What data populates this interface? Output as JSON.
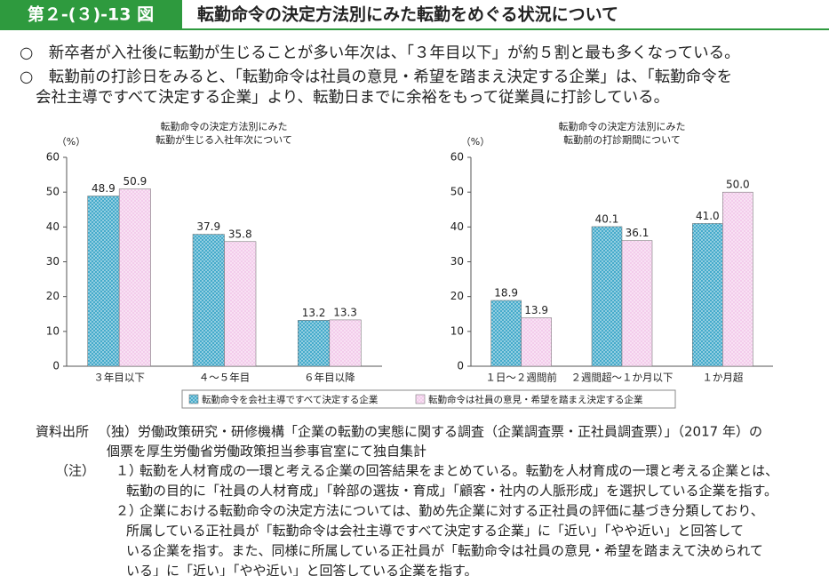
{
  "header": {
    "label": "第２-(３)-13 図",
    "title": "転勤命令の決定方法別にみた転勤をめぐる状況について"
  },
  "bullets": [
    [
      "○　新卒者が入社後に転勤が生じることが多い年次は、「３年目以下」が約５割と最も多くなっている。"
    ],
    [
      "○　転勤前の打診日をみると、「転勤命令は社員の意見・希望を踏まえ決定する企業」は、「転勤命令を",
      "会社主導ですべて決定する企業」より、転勤日までに余裕をもって従業員に打診している。"
    ]
  ],
  "chart_data": [
    {
      "type": "bar",
      "title": [
        "転勤命令の決定方法別にみた",
        "転勤が生じる入社年次について"
      ],
      "y_unit": "（%）",
      "categories": [
        "３年目以下",
        "４～５年目",
        "６年目以降"
      ],
      "series": [
        {
          "name": "転勤命令を会社主導ですべて決定する企業",
          "color": "#3aa6c8",
          "values": [
            48.9,
            37.9,
            13.2
          ]
        },
        {
          "name": "転勤命令は社員の意見・希望を踏まえ決定する企業",
          "color": "#f2c9ea",
          "values": [
            50.9,
            35.8,
            13.3
          ]
        }
      ],
      "ylim": [
        0,
        60
      ],
      "yticks": [
        0,
        10,
        20,
        30,
        40,
        50,
        60
      ]
    },
    {
      "type": "bar",
      "title": [
        "転勤命令の決定方法別にみた",
        "転勤前の打診期間について"
      ],
      "y_unit": "（%）",
      "categories": [
        "１日～２週間前",
        "２週間超～１か月以下",
        "１か月超"
      ],
      "series": [
        {
          "color": "#3aa6c8",
          "values": [
            18.9,
            40.1,
            41.0
          ],
          "value_labels": [
            "18.9",
            "40.1",
            "41.0"
          ]
        },
        {
          "color": "#f2c9ea",
          "values": [
            13.9,
            36.1,
            50.0
          ],
          "value_labels": [
            "13.9",
            "36.1",
            "50.0"
          ]
        }
      ],
      "ylim": [
        0,
        60
      ],
      "yticks": [
        0,
        10,
        20,
        30,
        40,
        50,
        60
      ]
    }
  ],
  "source": {
    "label": "資料出所",
    "lines": [
      "（独）労働政策研究・研修機構「企業の転勤の実態に関する調査（企業調査票・正社員調査票）」（2017 年）の",
      "個票を厚生労働省労働政策担当参事官室にて独自集計"
    ]
  },
  "notes": {
    "label": "（注）",
    "items": [
      {
        "num": "１）",
        "lines": [
          "転勤を人材育成の一環と考える企業の回答結果をまとめている。転勤を人材育成の一環と考える企業とは、",
          "転勤の目的に「社員の人材育成」「幹部の選抜・育成」「顧客・社内の人脈形成」を選択している企業を指す。"
        ]
      },
      {
        "num": "２）",
        "lines": [
          "企業における転勤命令の決定方法については、勤め先企業に対する正社員の評価に基づき分類しており、",
          "所属している正社員が「転勤命令は会社主導ですべて決定する企業」に「近い」「やや近い」と回答して",
          "いる企業を指す。また、同様に所属している正社員が「転勤命令は社員の意見・希望を踏まえて決められて",
          "いる」に「近い」「やや近い」と回答している企業を指す。"
        ]
      }
    ]
  }
}
